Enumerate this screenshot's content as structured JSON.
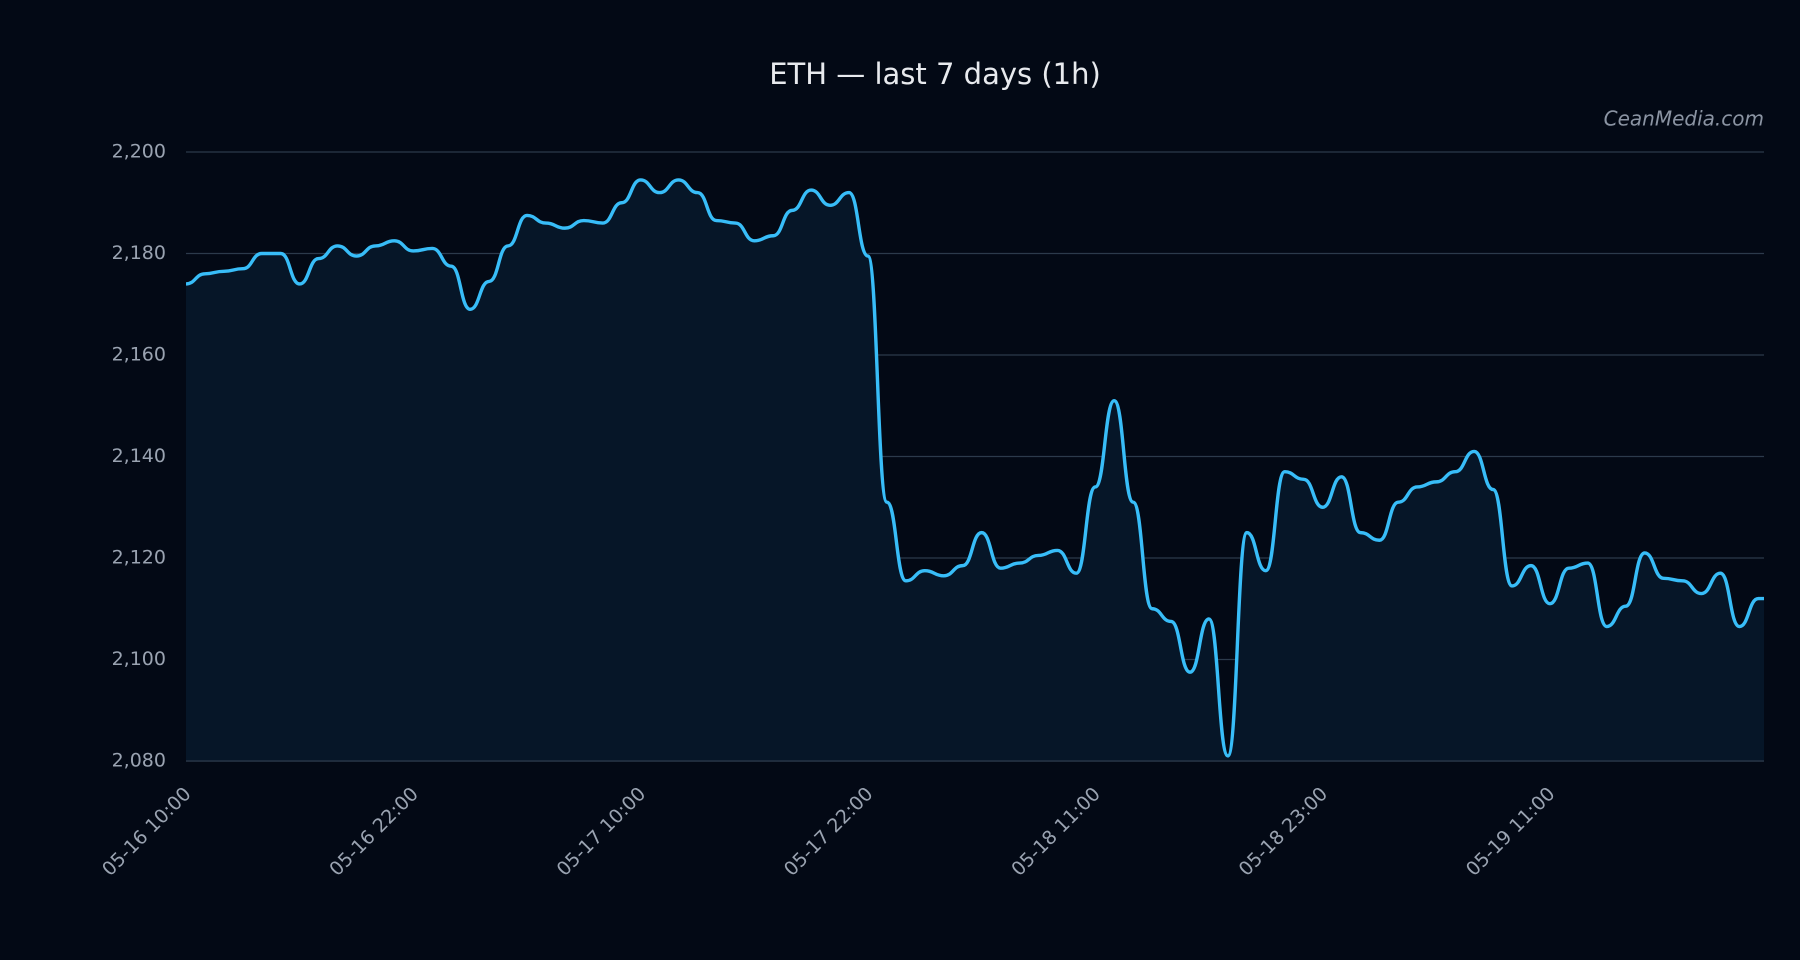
{
  "chart_data": {
    "type": "area",
    "title": "ETH — last 7 days (1h)",
    "annotation": "CeanMedia.com",
    "categories": [
      "05-16 10:00",
      null,
      null,
      null,
      null,
      null,
      null,
      null,
      null,
      null,
      null,
      null,
      "05-16 22:00",
      null,
      null,
      null,
      null,
      null,
      null,
      null,
      null,
      null,
      null,
      null,
      "05-17 10:00",
      null,
      null,
      null,
      null,
      null,
      null,
      null,
      null,
      null,
      null,
      null,
      "05-17 22:00",
      null,
      null,
      null,
      null,
      null,
      null,
      null,
      null,
      null,
      null,
      null,
      "05-18 11:00",
      null,
      null,
      null,
      null,
      null,
      null,
      null,
      null,
      null,
      null,
      null,
      "05-18 23:00",
      null,
      null,
      null,
      null,
      null,
      null,
      null,
      null,
      null,
      null,
      null,
      "05-19 11:00",
      null,
      null,
      null,
      null,
      null,
      null,
      null,
      null,
      null,
      null,
      null
    ],
    "values": [
      2174,
      2176,
      2176.5,
      2177,
      2180,
      2180,
      2174,
      2179,
      2181.5,
      2179.5,
      2181.5,
      2182.5,
      2180.5,
      2181,
      2177.5,
      2169,
      2174.5,
      2181.5,
      2187.5,
      2186,
      2185,
      2186.5,
      2186,
      2190,
      2194.5,
      2192,
      2194.5,
      2192,
      2186.5,
      2186,
      2182.5,
      2183.5,
      2188.5,
      2192.5,
      2189.5,
      2192,
      2179.5,
      2131,
      2115.5,
      2117.5,
      2116.5,
      2118.5,
      2125,
      2118,
      2119,
      2120.5,
      2121.5,
      2117,
      2134,
      2151,
      2131,
      2110,
      2107.5,
      2097.5,
      2108,
      2081,
      2125,
      2117.5,
      2137,
      2135.5,
      2130,
      2136,
      2125,
      2123.5,
      2131,
      2134,
      2135,
      2137,
      2141,
      2133.5,
      2114.5,
      2118.5,
      2111,
      2118,
      2119,
      2106.5,
      2110.5,
      2121,
      2116,
      2115.5,
      2113,
      2117,
      2106.5,
      2112
    ],
    "color": "#38bdf8",
    "area_color": "#061628",
    "ylim": [
      2080,
      2200
    ],
    "yticks": [
      {
        "value": 2080,
        "label": "2,080"
      },
      {
        "value": 2100,
        "label": "2,100"
      },
      {
        "value": 2120,
        "label": "2,120"
      },
      {
        "value": 2140,
        "label": "2,140"
      },
      {
        "value": 2160,
        "label": "2,160"
      },
      {
        "value": 2180,
        "label": "2,180"
      },
      {
        "value": 2200,
        "label": "2,200"
      }
    ],
    "grid": true
  }
}
